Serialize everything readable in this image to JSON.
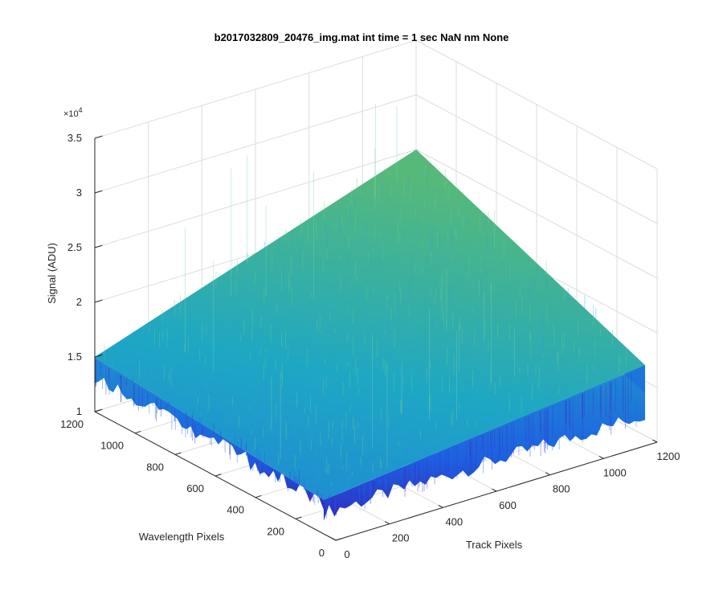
{
  "chart_data": {
    "type": "surface",
    "title": "b2017032809_20476_img.mat int time = 1 sec  NaN nm None",
    "xlabel": "Track Pixels",
    "ylabel": "Wavelength Pixels",
    "zlabel": "Signal (ADU)",
    "z_exponent_label": "×10",
    "z_exponent_power": "4",
    "xlim": [
      0,
      1200
    ],
    "ylim": [
      0,
      1200
    ],
    "zlim": [
      10000,
      35000
    ],
    "x_ticks": [
      "0",
      "200",
      "400",
      "600",
      "800",
      "1000",
      "1200"
    ],
    "y_ticks": [
      "0",
      "200",
      "400",
      "600",
      "800",
      "1000",
      "1200"
    ],
    "z_ticks": [
      "1",
      "1.5",
      "2",
      "2.5",
      "3",
      "3.5"
    ],
    "grid": true,
    "colormap": "parula",
    "corner_values": {
      "x0_y0": 13000,
      "x1200_y0": 16000,
      "x0_y1200": 15000,
      "x1200_y1200": 25000
    },
    "colors": {
      "low": "#3a3fd9",
      "mid": "#1fa3c7",
      "high": "#52b97a"
    }
  }
}
